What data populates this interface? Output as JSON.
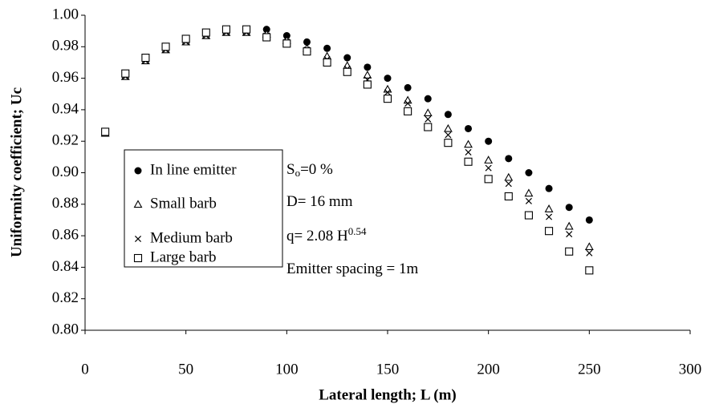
{
  "chart_data": {
    "type": "scatter",
    "x_label": "Lateral length; L (m)",
    "y_label": "Uniformity coefficient; Uc",
    "xlim": [
      0,
      300
    ],
    "xticks": [
      0,
      50,
      100,
      150,
      200,
      250,
      300
    ],
    "ylim": [
      0.8,
      1.0
    ],
    "yticks": [
      {
        "value": 0.8,
        "label": "0.80"
      },
      0.82,
      0.84,
      0.86,
      0.88,
      {
        "value": 0.9,
        "label": "0.90"
      },
      0.92,
      0.94,
      0.96,
      0.98,
      {
        "value": 1.0,
        "label": "1.00"
      }
    ],
    "x": [
      10,
      20,
      30,
      40,
      50,
      60,
      70,
      80,
      90,
      100,
      110,
      120,
      130,
      140,
      150,
      160,
      170,
      180,
      190,
      200,
      210,
      220,
      230,
      240,
      250
    ],
    "series": [
      {
        "name": "In line emitter",
        "color": "#000000",
        "marker": "circle",
        "values": [
          0.926,
          0.962,
          0.972,
          0.979,
          0.984,
          0.988,
          0.99,
          0.99,
          0.991,
          0.987,
          0.983,
          0.979,
          0.973,
          0.967,
          0.96,
          0.954,
          0.947,
          0.937,
          0.928,
          0.92,
          0.909,
          0.9,
          0.89,
          0.878,
          0.87
        ]
      },
      {
        "name": "Small barb",
        "color": "#000000",
        "marker": "triangle",
        "values": [
          0.925,
          0.961,
          0.971,
          0.978,
          0.983,
          0.987,
          0.989,
          0.989,
          0.988,
          0.984,
          0.979,
          0.974,
          0.968,
          0.962,
          0.953,
          0.946,
          0.938,
          0.928,
          0.918,
          0.908,
          0.897,
          0.887,
          0.877,
          0.866,
          0.853
        ]
      },
      {
        "name": "Medium barb",
        "color": "#000000",
        "marker": "x",
        "values": [
          0.925,
          0.961,
          0.971,
          0.978,
          0.983,
          0.987,
          0.989,
          0.989,
          0.987,
          0.983,
          0.978,
          0.972,
          0.966,
          0.959,
          0.951,
          0.944,
          0.934,
          0.924,
          0.913,
          0.903,
          0.893,
          0.882,
          0.872,
          0.861,
          0.849
        ]
      },
      {
        "name": "Large barb",
        "color": "#000000",
        "marker": "square",
        "values": [
          0.926,
          0.963,
          0.973,
          0.98,
          0.985,
          0.989,
          0.991,
          0.991,
          0.986,
          0.982,
          0.977,
          0.97,
          0.964,
          0.956,
          0.947,
          0.939,
          0.929,
          0.919,
          0.907,
          0.896,
          0.885,
          0.873,
          0.863,
          0.85,
          0.838
        ]
      }
    ],
    "annotations": [
      [
        {
          "text": "S",
          "style": "normal"
        },
        {
          "text": "o",
          "style": "sub"
        },
        {
          "text": "=0 %",
          "style": "normal"
        }
      ],
      [
        {
          "text": "D= 16 mm",
          "style": "normal"
        }
      ],
      [
        {
          "text": "q= 2.08 H",
          "style": "normal"
        },
        {
          "text": "0.54",
          "style": "sup"
        }
      ],
      [
        {
          "text": "Emitter spacing = 1m",
          "style": "normal"
        }
      ]
    ]
  }
}
